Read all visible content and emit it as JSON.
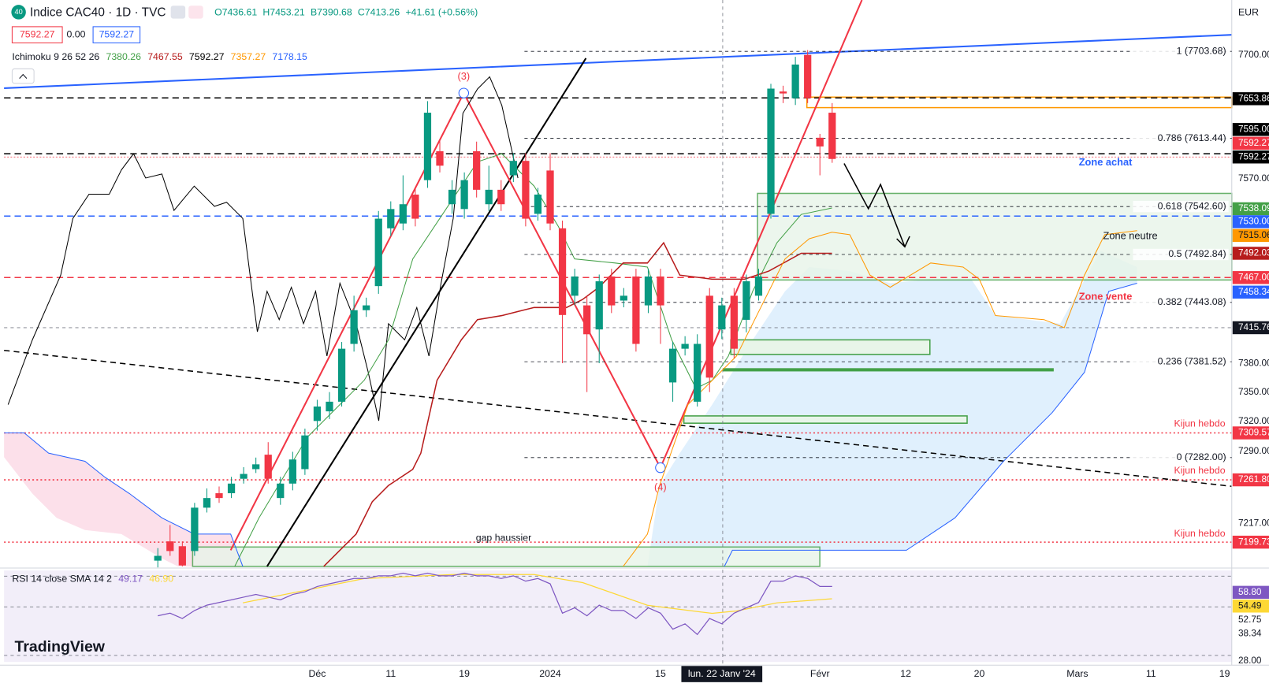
{
  "header": {
    "badge": "40",
    "symbol": "Indice CAC40 · 1D · TVC",
    "ohlc": [
      "O7436.61",
      "H7453.21",
      "B7390.68",
      "C7413.26",
      "+41.61 (+0.56%)"
    ],
    "bid": "7592.27",
    "spread": "0.00",
    "ask": "7592.27",
    "ichimoku_label": "Ichimoku 9 26 52 26",
    "ichimoku_values": [
      {
        "text": "7380.26",
        "color": "#43a047"
      },
      {
        "text": "7467.55",
        "color": "#b71c1c"
      },
      {
        "text": "7592.27",
        "color": "#000000"
      },
      {
        "text": "7357.27",
        "color": "#ff9800"
      },
      {
        "text": "7178.15",
        "color": "#2962ff"
      }
    ],
    "currency": "EUR",
    "logo": "TradingView"
  },
  "price_axis": [
    {
      "text": "7700.00"
    },
    {
      "text": "7653.86",
      "bg": "#000000"
    },
    {
      "text": "7595.00",
      "bg": "#000000"
    },
    {
      "text": "7592.27",
      "bg": "#f23645"
    },
    {
      "text": "7592.27",
      "bg": "#000000"
    },
    {
      "text": "7570.00"
    },
    {
      "text": "7538.09",
      "bg": "#43a047"
    },
    {
      "text": "7530.00",
      "bg": "#2962ff"
    },
    {
      "text": "7515.06",
      "bg": "#ff9800"
    },
    {
      "text": "7492.03",
      "bg": "#b71c1c"
    },
    {
      "text": "7467.00",
      "bg": "#f23645"
    },
    {
      "text": "7458.34",
      "bg": "#2962ff"
    },
    {
      "text": "7415.76",
      "bg": "#131722"
    },
    {
      "text": "7380.00"
    },
    {
      "text": "7350.00"
    },
    {
      "text": "7320.00"
    },
    {
      "text": "7309.57",
      "bg": "#f23645"
    },
    {
      "text": "7290.00"
    },
    {
      "text": "7261.80",
      "bg": "#f23645"
    },
    {
      "text": "7217.00"
    },
    {
      "text": "7199.73",
      "bg": "#f23645"
    }
  ],
  "annotations": {
    "zone_achat": "Zone achat",
    "zone_neutre": "Zone neutre",
    "zone_vente": "Zone vente",
    "kijun": [
      "Kijun hebdo",
      "Kijun hebdo",
      "Kijun hebdo"
    ],
    "gap": "gap haussier",
    "wave3": "(3)",
    "wave4": "(4)"
  },
  "rsi_panel": {
    "label": "RSI 14 close SMA 14 2",
    "value": "49.17",
    "sma": "46.90",
    "axis": [
      "58.80",
      "54.49",
      "52.75",
      "38.34",
      "28.00"
    ]
  },
  "chart_data": {
    "type": "candlestick",
    "up_color": "#089981",
    "down_color": "#f23645",
    "categories": [
      null,
      null,
      null,
      null,
      null,
      null,
      null,
      null,
      null,
      null,
      null,
      null,
      null,
      "Déc",
      null,
      null,
      null,
      null,
      null,
      "11",
      null,
      null,
      null,
      null,
      null,
      "19",
      null,
      null,
      null,
      null,
      null,
      null,
      "2024",
      null,
      null,
      null,
      null,
      null,
      null,
      null,
      null,
      "15",
      null,
      null,
      null,
      null,
      "lun. 22 Janv '24",
      null,
      null,
      null,
      null,
      null,
      null,
      null,
      "Févr",
      null,
      null,
      null,
      null,
      null,
      null,
      "12",
      null,
      null,
      null,
      null,
      null,
      "20",
      null,
      null,
      null,
      null,
      null,
      null,
      null,
      "Mars",
      null,
      null,
      null,
      null,
      null,
      "11",
      null,
      null,
      null,
      null,
      null,
      "19"
    ],
    "open": [
      7175,
      7195,
      7190,
      7185,
      7230,
      7245,
      7245,
      7260,
      7270,
      7285,
      7240,
      7255,
      7270,
      7320,
      7330,
      7340,
      7400,
      7435,
      7460,
      7520,
      7525,
      7555,
      7570,
      7600,
      7545,
      7540,
      7600,
      7545,
      7560,
      7575,
      7590,
      7535,
      7580,
      7520,
      7450,
      7440,
      7415,
      7470,
      7445,
      7470,
      7440,
      7470,
      7360,
      7395,
      7340,
      7450,
      7415,
      7450,
      7425,
      7450,
      7535,
      7662,
      7655,
      7700,
      7614,
      7640,
      null,
      null,
      null,
      null,
      null,
      null,
      null,
      null,
      null,
      null,
      null,
      null,
      null,
      null,
      null,
      null,
      null,
      null,
      null,
      null,
      null,
      null,
      null,
      null,
      null,
      null,
      null,
      null,
      null,
      null,
      null,
      null
    ],
    "high": [
      7188,
      7212,
      7195,
      7235,
      7250,
      7252,
      7262,
      7272,
      7282,
      7298,
      7262,
      7288,
      7312,
      7342,
      7350,
      7402,
      7450,
      7448,
      7538,
      7548,
      7575,
      7562,
      7652,
      7612,
      7570,
      7578,
      7610,
      7585,
      7570,
      7598,
      7598,
      7562,
      7598,
      7528,
      7478,
      7450,
      7472,
      7478,
      7458,
      7478,
      7478,
      7478,
      7402,
      7408,
      7410,
      7458,
      7448,
      7458,
      7472,
      7478,
      7670,
      7668,
      7698,
      7705,
      7618,
      7650,
      null,
      null,
      null,
      null,
      null,
      null,
      null,
      null,
      null,
      null,
      null,
      null,
      null,
      null,
      null,
      null,
      null,
      null,
      null,
      null,
      null,
      null,
      null,
      null,
      null,
      null,
      null,
      null,
      null,
      null,
      null,
      null
    ],
    "low": [
      7168,
      7180,
      7169,
      7180,
      7225,
      7235,
      7240,
      7255,
      7266,
      7255,
      7233,
      7248,
      7264,
      7310,
      7322,
      7335,
      7392,
      7428,
      7452,
      7512,
      7518,
      7522,
      7562,
      7578,
      7535,
      7530,
      7552,
      7538,
      7538,
      7568,
      7522,
      7528,
      7518,
      7380,
      7440,
      7350,
      7380,
      7432,
      7438,
      7392,
      7432,
      7400,
      7340,
      7388,
      7335,
      7350,
      7405,
      7385,
      7412,
      7445,
      7530,
      7650,
      7648,
      7650,
      7575,
      7588,
      null,
      null,
      null,
      null,
      null,
      null,
      null,
      null,
      null,
      null,
      null,
      null,
      null,
      null,
      null,
      null,
      null,
      null,
      null,
      null,
      null,
      null,
      null,
      null,
      null,
      null,
      null,
      null,
      null,
      null,
      null,
      null
    ],
    "close": [
      7180,
      7185,
      7170,
      7230,
      7240,
      7240,
      7255,
      7265,
      7275,
      7260,
      7255,
      7280,
      7305,
      7335,
      7340,
      7395,
      7435,
      7440,
      7530,
      7540,
      7545,
      7530,
      7640,
      7585,
      7560,
      7570,
      7560,
      7560,
      7545,
      7590,
      7530,
      7555,
      7525,
      7430,
      7470,
      7410,
      7465,
      7440,
      7450,
      7400,
      7470,
      7440,
      7395,
      7400,
      7400,
      7365,
      7440,
      7395,
      7465,
      7470,
      7665,
      7660,
      7690,
      7655,
      7605,
      7592,
      null,
      null,
      null,
      null,
      null,
      null,
      null,
      null,
      null,
      null,
      null,
      null,
      null,
      null,
      null,
      null,
      null,
      null,
      null,
      null,
      null,
      null,
      null,
      null,
      null,
      null,
      null,
      null,
      null,
      null,
      null,
      null
    ],
    "ylim": [
      7169,
      7757
    ],
    "fib_levels": [
      {
        "value": 7703.68,
        "label": "1 (7703.68)"
      },
      {
        "value": 7613.44,
        "label": "0.786 (7613.44)"
      },
      {
        "value": 7542.6,
        "label": "0.618 (7542.60)"
      },
      {
        "value": 7492.84,
        "label": "0.5 (7492.84)"
      },
      {
        "value": 7443.08,
        "label": "0.382 (7443.08)"
      },
      {
        "value": 7381.52,
        "label": "0.236 (7381.52)"
      },
      {
        "value": 7282,
        "label": "0 (7282.00)"
      }
    ],
    "rsi": {
      "color": "#7e57c2",
      "ylim": [
        26.2,
        62
      ],
      "values": [
        45,
        46,
        44,
        47,
        49,
        50,
        51,
        52,
        53,
        52,
        51,
        53,
        54,
        56,
        57,
        58,
        59,
        59,
        60,
        60,
        61,
        60,
        61,
        60,
        60,
        61,
        60,
        60,
        59,
        60,
        58,
        59,
        57,
        46,
        48,
        45,
        49,
        47,
        47,
        44,
        48,
        46,
        40,
        42,
        38,
        44,
        42,
        46,
        48,
        50,
        58,
        58,
        60,
        59,
        56,
        56,
        null,
        null,
        null,
        null,
        null,
        null,
        null,
        null,
        null,
        null,
        null,
        null,
        null,
        null,
        null,
        null,
        null,
        null,
        null,
        null,
        null,
        null,
        null,
        null,
        null,
        null,
        null,
        null,
        null,
        null,
        null,
        null
      ]
    }
  }
}
